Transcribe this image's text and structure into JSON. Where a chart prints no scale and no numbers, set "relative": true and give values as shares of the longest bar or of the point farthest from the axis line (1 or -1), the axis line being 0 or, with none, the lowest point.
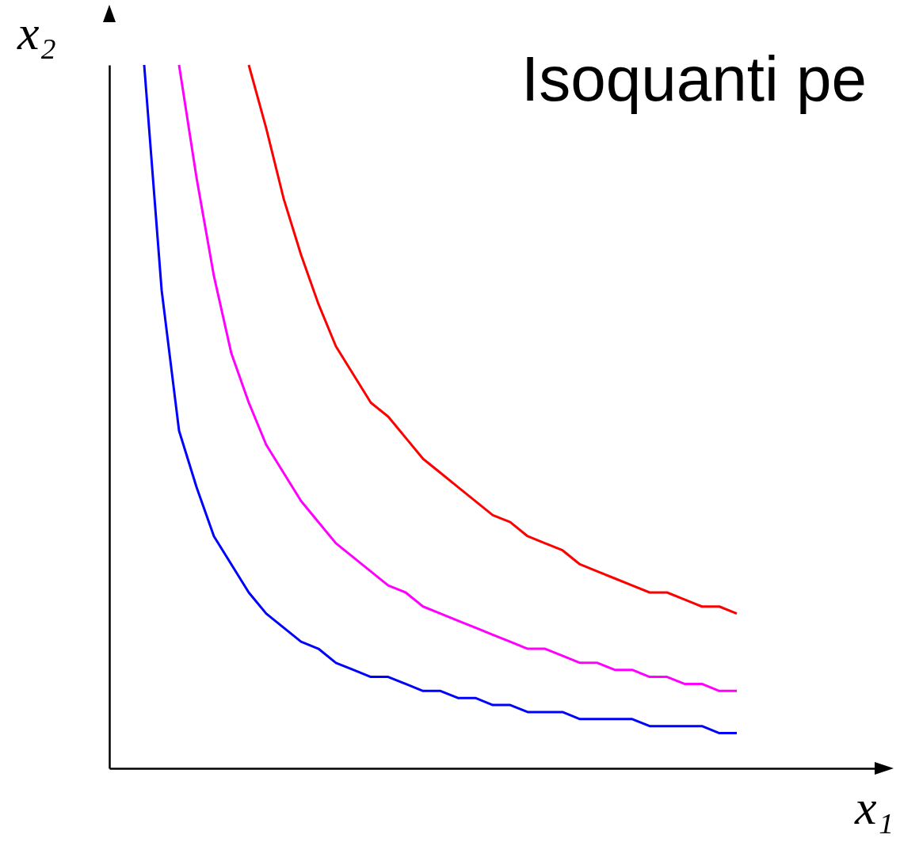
{
  "chart_data": {
    "type": "line",
    "title": "Isoquanti pe",
    "xlabel": "x₁",
    "ylabel": "x₂",
    "relative": true,
    "legend": false,
    "categories": [
      null,
      null,
      null,
      null,
      null,
      null,
      null,
      null,
      null,
      null,
      null,
      null,
      null,
      null,
      null,
      null,
      null,
      null,
      null,
      null,
      null,
      null,
      null,
      null,
      null,
      null,
      null,
      null,
      null,
      null,
      null,
      null,
      null,
      null,
      null,
      null,
      null,
      null,
      null,
      null,
      null,
      null,
      null,
      null,
      null
    ],
    "series": [
      {
        "color": "#0000ff",
        "values": [
          null,
          null,
          1.0,
          0.68,
          0.48,
          0.4,
          0.33,
          0.29,
          0.25,
          0.22,
          0.2,
          0.18,
          0.17,
          0.15,
          0.14,
          0.13,
          0.13,
          0.12,
          0.11,
          0.11,
          0.1,
          0.1,
          0.09,
          0.09,
          0.08,
          0.08,
          0.08,
          0.07,
          0.07,
          0.07,
          0.07,
          0.06,
          0.06,
          0.06,
          0.06,
          0.05,
          0.05,
          null,
          null,
          null,
          null,
          null,
          null,
          null,
          null
        ]
      },
      {
        "color": "#ff00ff",
        "values": [
          null,
          null,
          null,
          null,
          1.0,
          0.84,
          0.7,
          0.59,
          0.52,
          0.46,
          0.42,
          0.38,
          0.35,
          0.32,
          0.3,
          0.28,
          0.26,
          0.25,
          0.23,
          0.22,
          0.21,
          0.2,
          0.19,
          0.18,
          0.17,
          0.17,
          0.16,
          0.15,
          0.15,
          0.14,
          0.14,
          0.13,
          0.13,
          0.12,
          0.12,
          0.11,
          0.11,
          null,
          null,
          null,
          null,
          null,
          null,
          null,
          null
        ]
      },
      {
        "color": "#ff0000",
        "values": [
          null,
          null,
          null,
          null,
          null,
          null,
          null,
          null,
          1.0,
          0.91,
          0.81,
          0.73,
          0.66,
          0.6,
          0.56,
          0.52,
          0.5,
          0.47,
          0.44,
          0.42,
          0.4,
          0.38,
          0.36,
          0.35,
          0.33,
          0.32,
          0.31,
          0.29,
          0.28,
          0.27,
          0.26,
          0.25,
          0.25,
          0.24,
          0.23,
          0.23,
          0.22,
          null,
          null,
          null,
          null,
          null,
          null,
          null,
          null
        ]
      }
    ]
  }
}
